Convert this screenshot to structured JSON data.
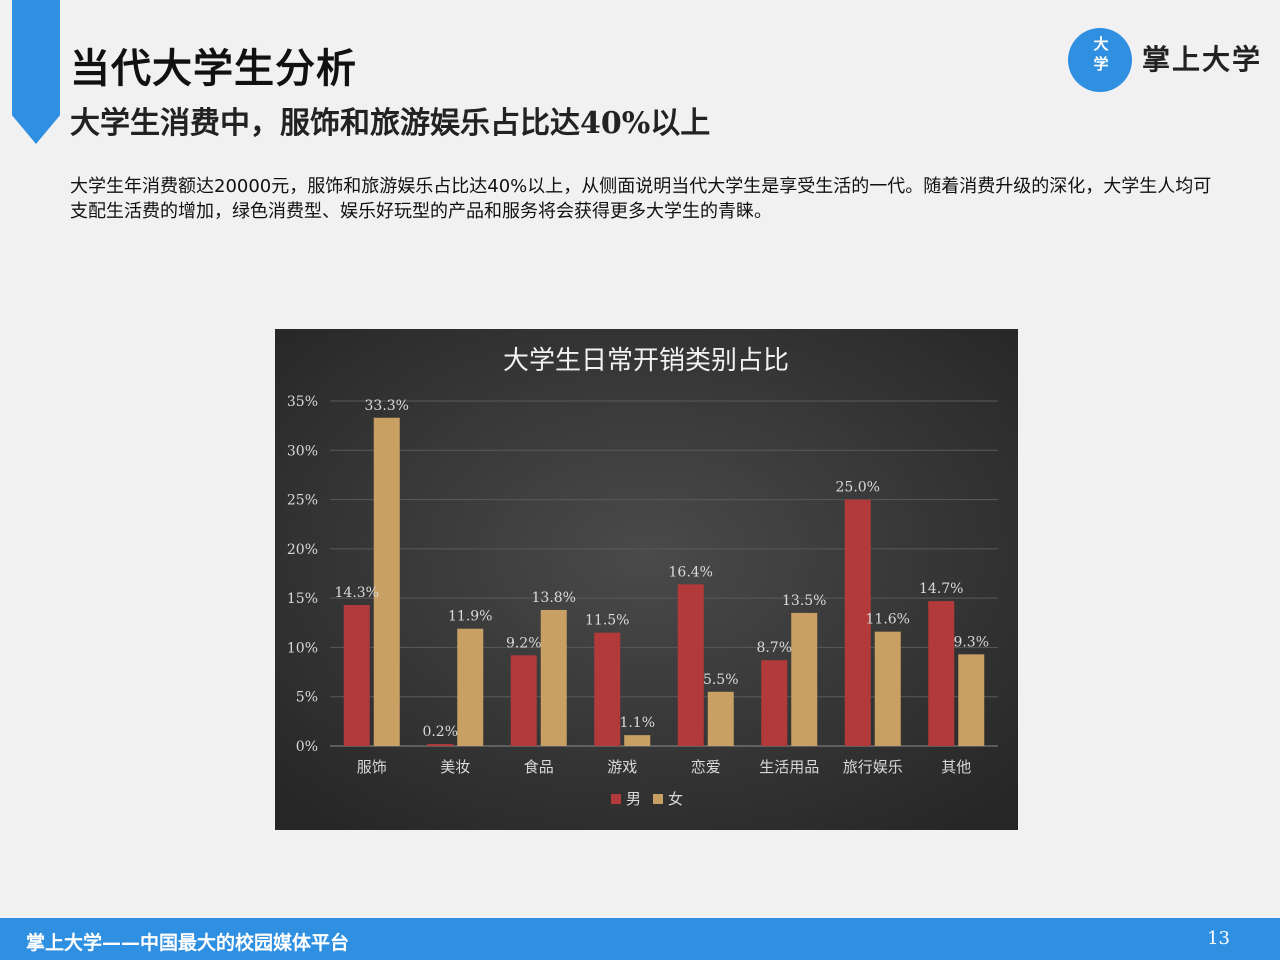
{
  "slide": {
    "title": "当代大学生分析",
    "subtitle": "大学生消费中，服饰和旅游娱乐占比达40%以上",
    "description": "大学生年消费额达20000元，服饰和旅游娱乐占比达40%以上，从侧面说明当代大学生是享受生活的一代。随着消费升级的深化，大学生人均可支配生活费的增加，绿色消费型、娱乐好玩型的产品和服务将会获得更多大学生的青睐。",
    "logo": {
      "circle_text": "大学",
      "name": "掌上大学"
    },
    "footer": {
      "text": "掌上大学——中国最大的校园媒体平台",
      "page_number": "13"
    },
    "colors": {
      "accent": "#2f8fe0",
      "male": "#b23a3a",
      "female": "#c9a064",
      "chart_bg": "#3e3e3e"
    }
  },
  "chart_data": {
    "type": "bar",
    "title": "大学生日常开销类别占比",
    "categories": [
      "服饰",
      "美妆",
      "食品",
      "游戏",
      "恋爱",
      "生活用品",
      "旅行娱乐",
      "其他"
    ],
    "series": [
      {
        "name": "男",
        "values": [
          14.3,
          0.2,
          9.2,
          11.5,
          16.4,
          8.7,
          25.0,
          14.7
        ],
        "labels": [
          "14.3%",
          "0.2%",
          "9.2%",
          "11.5%",
          "16.4%",
          "8.7%",
          "25.0%",
          "14.7%"
        ]
      },
      {
        "name": "女",
        "values": [
          33.3,
          11.9,
          13.8,
          1.1,
          5.5,
          13.5,
          11.6,
          9.3
        ],
        "labels": [
          "33.3%",
          "11.9%",
          "13.8%",
          "1.1%",
          "5.5%",
          "13.5%",
          "11.6%",
          "9.3%"
        ]
      }
    ],
    "y_ticks": [
      "0%",
      "5%",
      "10%",
      "15%",
      "20%",
      "25%",
      "30%",
      "35%"
    ],
    "ylim": [
      0,
      35
    ],
    "grid": true,
    "legend": "bottom-center"
  }
}
